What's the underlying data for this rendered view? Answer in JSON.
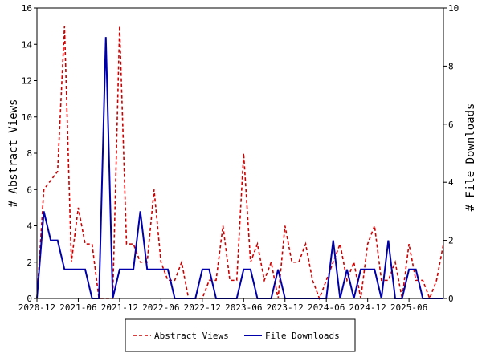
{
  "chart_data": {
    "type": "line",
    "x_start": "2020-12",
    "x_labels": [
      "2020-12",
      "2021-06",
      "2021-12",
      "2022-06",
      "2022-12",
      "2023-06",
      "2023-12",
      "2024-06",
      "2024-12",
      "2025-06"
    ],
    "left_axis": {
      "label": "# Abstract Views",
      "ylim": [
        0,
        16
      ],
      "ticks": [
        0,
        2,
        4,
        6,
        8,
        10,
        12,
        14,
        16
      ]
    },
    "right_axis": {
      "label": "# File Downloads",
      "ylim": [
        0,
        10
      ],
      "ticks": [
        0,
        2,
        4,
        6,
        8,
        10
      ]
    },
    "series": [
      {
        "name": "Abstract Views",
        "axis": "left",
        "color": "#cc0000",
        "style": "dashed",
        "values": [
          0,
          6,
          6.5,
          7,
          15,
          2,
          5,
          3,
          3,
          0,
          0,
          0,
          15,
          3,
          3,
          2,
          2,
          6,
          2,
          1,
          1,
          2,
          0,
          0,
          0,
          1,
          1,
          4,
          1,
          1,
          8,
          2,
          3,
          1,
          2,
          0,
          4,
          2,
          2,
          3,
          1,
          0,
          1,
          2,
          3,
          1,
          2,
          0,
          3,
          4,
          1,
          1,
          2,
          0,
          3,
          1,
          1,
          0,
          1,
          3
        ]
      },
      {
        "name": "File Downloads",
        "axis": "right",
        "color": "#0000aa",
        "style": "solid",
        "values": [
          0,
          3,
          2,
          2,
          1,
          1,
          1,
          1,
          0,
          0,
          9,
          0,
          1,
          1,
          1,
          3,
          1,
          1,
          1,
          1,
          0,
          0,
          0,
          0,
          1,
          1,
          0,
          0,
          0,
          0,
          1,
          1,
          0,
          0,
          0,
          1,
          0,
          0,
          0,
          0,
          0,
          0,
          0,
          2,
          0,
          1,
          0,
          1,
          1,
          1,
          0,
          2,
          0,
          0,
          1,
          1,
          0,
          0,
          0,
          0
        ]
      }
    ],
    "legend_position": "bottom"
  }
}
